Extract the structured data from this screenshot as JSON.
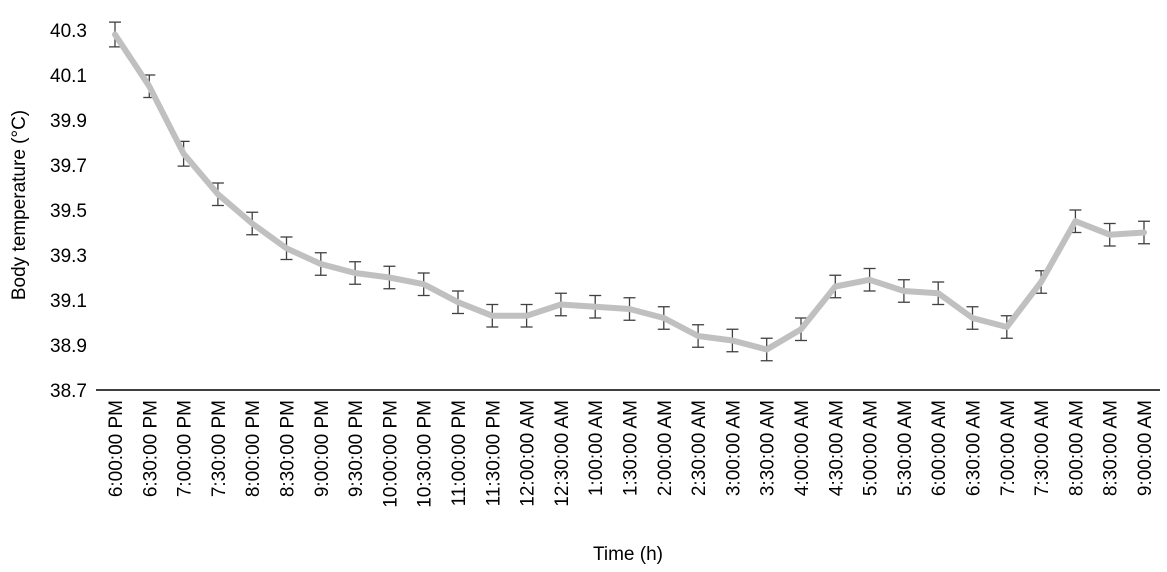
{
  "chart_data": {
    "type": "line",
    "title": "",
    "xlabel": "Time (h)",
    "ylabel": "Body temperature (°C)",
    "ylim": [
      38.7,
      40.3
    ],
    "yticks": [
      "38.7",
      "38.9",
      "39.1",
      "39.3",
      "39.5",
      "39.7",
      "39.9",
      "40.1",
      "40.3"
    ],
    "categories": [
      "6:00:00 PM",
      "6:30:00 PM",
      "7:00:00 PM",
      "7:30:00 PM",
      "8:00:00 PM",
      "8:30:00 PM",
      "9:00:00 PM",
      "9:30:00 PM",
      "10:00:00 PM",
      "10:30:00 PM",
      "11:00:00 PM",
      "11:30:00 PM",
      "12:00:00 AM",
      "12:30:00 AM",
      "1:00:00 AM",
      "1:30:00 AM",
      "2:00:00 AM",
      "2:30:00 AM",
      "3:00:00 AM",
      "3:30:00 AM",
      "4:00:00 AM",
      "4:30:00 AM",
      "5:00:00 AM",
      "5:30:00 AM",
      "6:00:00 AM",
      "6:30:00 AM",
      "7:00:00 AM",
      "7:30:00 AM",
      "8:00:00 AM",
      "8:30:00 AM",
      "9:00:00 AM"
    ],
    "series": [
      {
        "name": "Body temperature",
        "values": [
          40.28,
          40.05,
          39.75,
          39.57,
          39.44,
          39.33,
          39.26,
          39.22,
          39.2,
          39.17,
          39.09,
          39.03,
          39.03,
          39.08,
          39.07,
          39.06,
          39.02,
          38.94,
          38.92,
          38.88,
          38.97,
          39.16,
          39.19,
          39.14,
          39.13,
          39.02,
          38.98,
          39.18,
          39.45,
          39.39,
          39.4
        ],
        "errors": [
          0.055,
          0.05,
          0.055,
          0.05,
          0.05,
          0.05,
          0.05,
          0.05,
          0.05,
          0.05,
          0.05,
          0.05,
          0.05,
          0.05,
          0.05,
          0.05,
          0.05,
          0.05,
          0.05,
          0.05,
          0.05,
          0.05,
          0.05,
          0.05,
          0.05,
          0.05,
          0.05,
          0.05,
          0.05,
          0.05,
          0.05
        ],
        "color": "#c0c0c0"
      }
    ],
    "colors": {
      "line": "#c0c0c0",
      "errorbar": "#404040",
      "axis": "#000000"
    },
    "grid": false,
    "legend": "none"
  }
}
